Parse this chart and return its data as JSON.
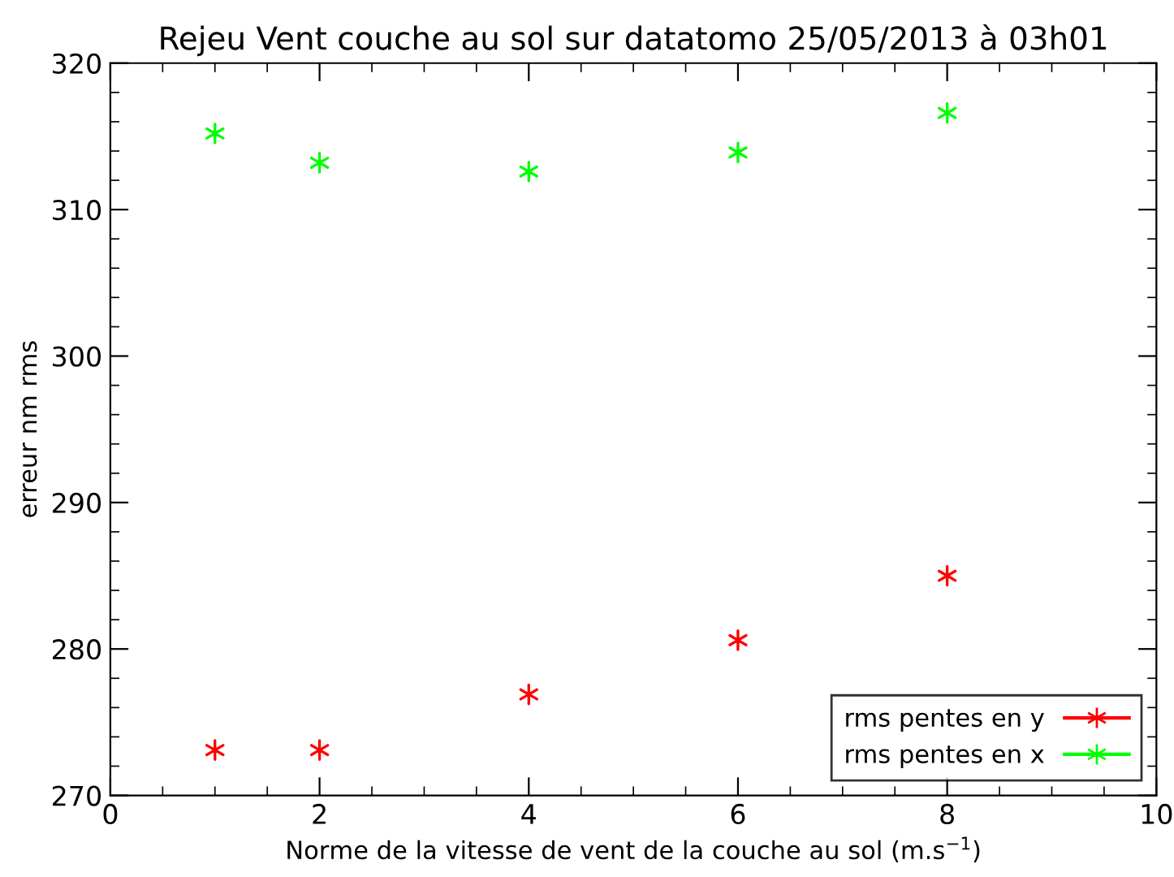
{
  "chart_data": {
    "type": "scatter",
    "title": "Rejeu Vent couche au sol sur datatomo 25/05/2013 à 03h01",
    "xlabel": "Norme de la vitesse de vent de la couche au sol (m.s$^{−1}$)",
    "ylabel": "erreur nm rms",
    "x": [
      1,
      2,
      4,
      6,
      8
    ],
    "series": [
      {
        "name": "rms pentes en y",
        "color": "#ff0000",
        "values": [
          273.1,
          273.1,
          276.9,
          280.6,
          285.0
        ]
      },
      {
        "name": "rms pentes en x",
        "color": "#00ff00",
        "values": [
          315.2,
          313.2,
          312.6,
          313.9,
          316.6
        ]
      }
    ],
    "xlim": [
      0,
      10
    ],
    "xticks": [
      0,
      2,
      4,
      6,
      8,
      10
    ],
    "ylim": [
      270,
      320
    ],
    "yticks": [
      270,
      280,
      290,
      300,
      310,
      320
    ],
    "marker": "cross",
    "grid": false,
    "legend": "bottom right"
  }
}
